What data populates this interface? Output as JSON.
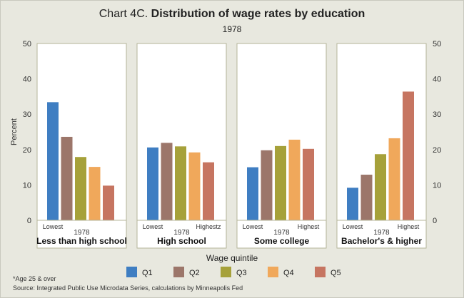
{
  "title": {
    "prefix": "Chart 4C.",
    "main": "Distribution of wage rates by education"
  },
  "subtitle": "1978",
  "chart_data": {
    "type": "bar",
    "ylabel": "Percent",
    "xlabel": "Wage quintile",
    "ylim": [
      0,
      50
    ],
    "yticks": [
      0,
      10,
      20,
      30,
      40,
      50
    ],
    "year_label": "1978",
    "series_names": [
      "Q1",
      "Q2",
      "Q3",
      "Q4",
      "Q5"
    ],
    "colors": [
      "#3f7ec2",
      "#9c766a",
      "#a6a13a",
      "#f0a85b",
      "#c67561"
    ],
    "panels": [
      {
        "name": "Less than high school",
        "values": [
          33.4,
          23.6,
          17.9,
          15.1,
          9.8
        ],
        "low_label": "Lowest",
        "high_label": ""
      },
      {
        "name": "High school",
        "values": [
          20.6,
          21.9,
          20.9,
          19.2,
          16.4
        ],
        "low_label": "Lowest",
        "high_label": "Highestz"
      },
      {
        "name": "Some college",
        "values": [
          15.0,
          19.8,
          21.0,
          22.8,
          20.2
        ],
        "low_label": "Lowest",
        "high_label": "Highest"
      },
      {
        "name": "Bachelor's & higher",
        "values": [
          9.2,
          12.9,
          18.7,
          23.2,
          36.4
        ],
        "low_label": "Lowest",
        "high_label": "Highest"
      }
    ]
  },
  "footnotes": {
    "line1": "*Age 25 & over",
    "line2": "Source: Integrated Public Use Microdata Series, calculations by Minneapolis Fed"
  }
}
